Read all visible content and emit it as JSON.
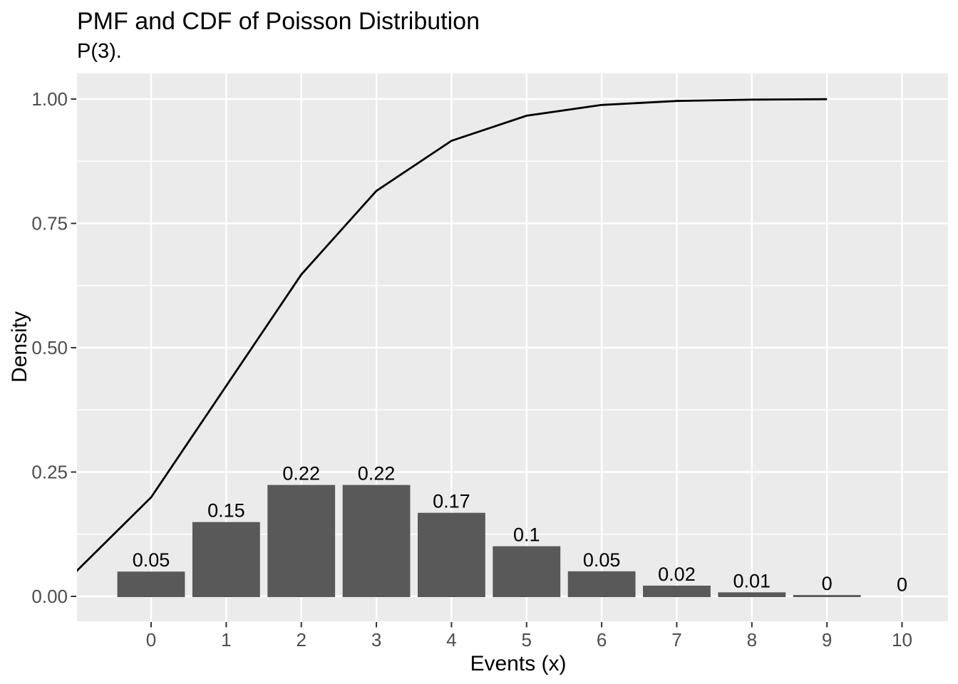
{
  "chart": {
    "title": "PMF and CDF of Poisson Distribution",
    "subtitle": "P(3).",
    "xlabel": "Events (x)",
    "ylabel": "Density"
  },
  "chart_data": {
    "type": "bar+line",
    "title": "PMF and CDF of Poisson Distribution",
    "subtitle": "P(3).",
    "xlabel": "Events (x)",
    "ylabel": "Density",
    "x": [
      0,
      1,
      2,
      3,
      4,
      5,
      6,
      7,
      8,
      9,
      10
    ],
    "x_tick_labels": [
      "0",
      "1",
      "2",
      "3",
      "4",
      "5",
      "6",
      "7",
      "8",
      "9",
      "10"
    ],
    "y_tick_labels": [
      "0.00",
      "0.25",
      "0.50",
      "0.75",
      "1.00"
    ],
    "y_tick_values": [
      0,
      0.25,
      0.5,
      0.75,
      1.0
    ],
    "y_minor_values": [
      0.125,
      0.375,
      0.625,
      0.875
    ],
    "ylim": [
      0,
      1
    ],
    "grid": true,
    "legend": "none",
    "series": [
      {
        "name": "PMF",
        "type": "bar",
        "values": [
          0.0498,
          0.1494,
          0.224,
          0.224,
          0.168,
          0.1008,
          0.0504,
          0.0216,
          0.0081,
          0.0027,
          0.0008
        ],
        "labels": [
          "0.05",
          "0.15",
          "0.22",
          "0.22",
          "0.17",
          "0.1",
          "0.05",
          "0.02",
          "0.01",
          "0",
          "0"
        ],
        "bar_width": 0.9,
        "color": "#595959"
      },
      {
        "name": "CDF",
        "type": "line",
        "values": [
          0.0498,
          0.1991,
          0.4232,
          0.6472,
          0.8153,
          0.9161,
          0.9665,
          0.9881,
          0.9962,
          0.9989,
          0.9997
        ],
        "x_offset": -1,
        "color": "#000000"
      }
    ],
    "colors": {
      "panel_background": "#EBEBEB",
      "grid_line": "#FFFFFF",
      "tick_mark": "#333333",
      "tick_label": "#4D4D4D",
      "bar_fill": "#595959",
      "line_stroke": "#000000",
      "value_label": "#000000"
    }
  }
}
